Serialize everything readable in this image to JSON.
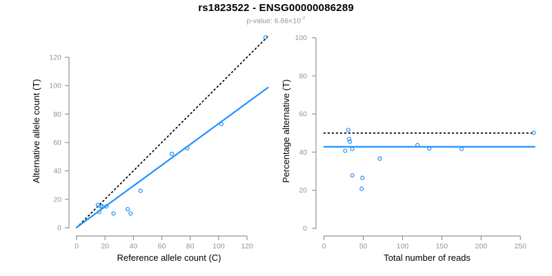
{
  "header": {
    "title": "rs1823522 - ENSG00000086289",
    "pvalue_text": "p-value: 6.66×10",
    "pvalue_exponent": "-7"
  },
  "colors": {
    "blue": "#1E90FF",
    "axis_gray": "#949494",
    "black": "#000000"
  },
  "chart_data": [
    {
      "type": "scatter",
      "panel": "allele-counts",
      "xlabel": "Reference allele count (C)",
      "ylabel": "Alternative allele count (T)",
      "xticks": [
        0,
        20,
        40,
        60,
        80,
        100,
        120
      ],
      "yticks": [
        0,
        20,
        40,
        60,
        80,
        100,
        120
      ],
      "xlim": [
        0,
        135
      ],
      "ylim": [
        0,
        135
      ],
      "marker": "open-circle",
      "points": [
        [
          15,
          16
        ],
        [
          17,
          15
        ],
        [
          18,
          15
        ],
        [
          16,
          11
        ],
        [
          21,
          15
        ],
        [
          26,
          10
        ],
        [
          36,
          13
        ],
        [
          38,
          10
        ],
        [
          45,
          26
        ],
        [
          67,
          52
        ],
        [
          78,
          56
        ],
        [
          102,
          73
        ],
        [
          133,
          134
        ]
      ],
      "lines": [
        {
          "name": "identity-line",
          "style": "dotted",
          "color": "#000000",
          "x1": 0,
          "y1": 0,
          "x2": 134.5,
          "y2": 134.5,
          "width": 1.7
        },
        {
          "name": "regression-line",
          "style": "solid",
          "color": "#1E90FF",
          "x1": 0,
          "y1": 0.2,
          "x2": 134.8,
          "y2": 98.7,
          "width": 2.2
        }
      ]
    },
    {
      "type": "scatter",
      "panel": "percentage-vs-coverage",
      "xlabel": "Total number of reads",
      "ylabel": "Percentage alternative (T)",
      "xticks": [
        0,
        50,
        100,
        150,
        200,
        250
      ],
      "yticks": [
        0,
        20,
        40,
        60,
        80,
        100
      ],
      "xlim": [
        0,
        270
      ],
      "ylim": [
        0,
        100
      ],
      "marker": "open-circle",
      "points": [
        [
          31,
          51.6
        ],
        [
          32,
          46.9
        ],
        [
          33,
          45.5
        ],
        [
          27,
          40.7
        ],
        [
          36,
          41.7
        ],
        [
          36,
          27.8
        ],
        [
          49,
          26.5
        ],
        [
          48,
          20.8
        ],
        [
          71,
          36.6
        ],
        [
          119,
          43.7
        ],
        [
          134,
          41.8
        ],
        [
          175,
          41.7
        ],
        [
          267,
          50.2
        ]
      ],
      "lines": [
        {
          "name": "fifty-percent-line",
          "style": "dotted",
          "color": "#000000",
          "x1": 0,
          "y1": 50,
          "x2": 268,
          "y2": 50,
          "width": 1.7
        },
        {
          "name": "mean-percentage-line",
          "style": "solid",
          "color": "#1E90FF",
          "x1": 0,
          "y1": 42.8,
          "x2": 268,
          "y2": 42.8,
          "width": 2.2
        }
      ]
    }
  ]
}
